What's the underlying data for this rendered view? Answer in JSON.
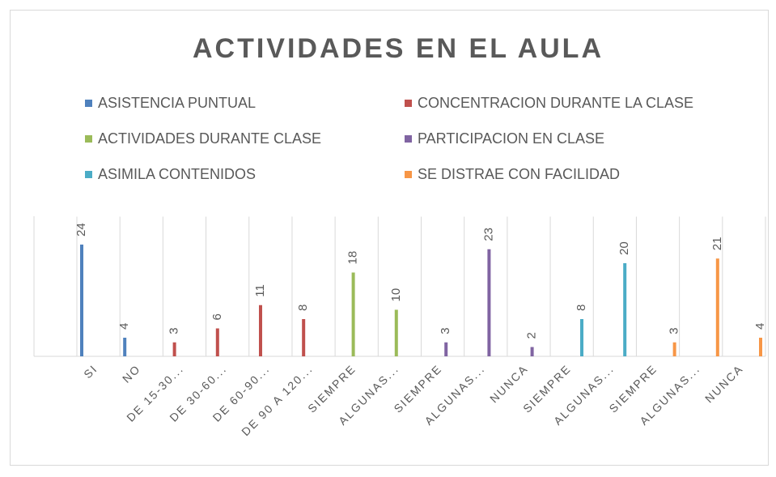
{
  "chart_data": {
    "type": "bar",
    "title": "ACTIVIDADES  EN  EL  AULA",
    "categories": [
      "SI",
      "NO",
      "DE 15-30...",
      "DE 30-60...",
      "DE 60-90...",
      "DE 90 A 120...",
      "SIEMPRE",
      "ALGUNAS...",
      "SIEMPRE",
      "ALGUNAS...",
      "NUNCA",
      "SIEMPRE",
      "ALGUNAS...",
      "SIEMPRE",
      "ALGUNAS...",
      "NUNCA"
    ],
    "series": [
      {
        "name": "ASISTENCIA PUNTUAL",
        "color": "#4f81bd",
        "values": [
          24,
          4,
          null,
          null,
          null,
          null,
          null,
          null,
          null,
          null,
          null,
          null,
          null,
          null,
          null,
          null
        ]
      },
      {
        "name": "CONCENTRACION DURANTE LA CLASE",
        "color": "#c0504d",
        "values": [
          null,
          null,
          3,
          6,
          11,
          8,
          null,
          null,
          null,
          null,
          null,
          null,
          null,
          null,
          null,
          null
        ]
      },
      {
        "name": "ACTIVIDADES DURANTE CLASE",
        "color": "#9bbb59",
        "values": [
          null,
          null,
          null,
          null,
          null,
          null,
          18,
          10,
          null,
          null,
          null,
          null,
          null,
          null,
          null,
          null
        ]
      },
      {
        "name": "PARTICIPACION EN CLASE",
        "color": "#8064a2",
        "values": [
          null,
          null,
          null,
          null,
          null,
          null,
          null,
          null,
          3,
          23,
          2,
          null,
          null,
          null,
          null,
          null
        ]
      },
      {
        "name": "ASIMILA CONTENIDOS",
        "color": "#4bacc6",
        "values": [
          null,
          null,
          null,
          null,
          null,
          null,
          null,
          null,
          null,
          null,
          null,
          8,
          20,
          null,
          null,
          null
        ]
      },
      {
        "name": "SE DISTRAE CON FACILIDAD",
        "color": "#f79646",
        "values": [
          null,
          null,
          null,
          null,
          null,
          null,
          null,
          null,
          null,
          null,
          null,
          null,
          null,
          3,
          21,
          4
        ]
      }
    ],
    "ylim": [
      0,
      30
    ],
    "grid": true,
    "legend": "top",
    "data_labels": true
  }
}
